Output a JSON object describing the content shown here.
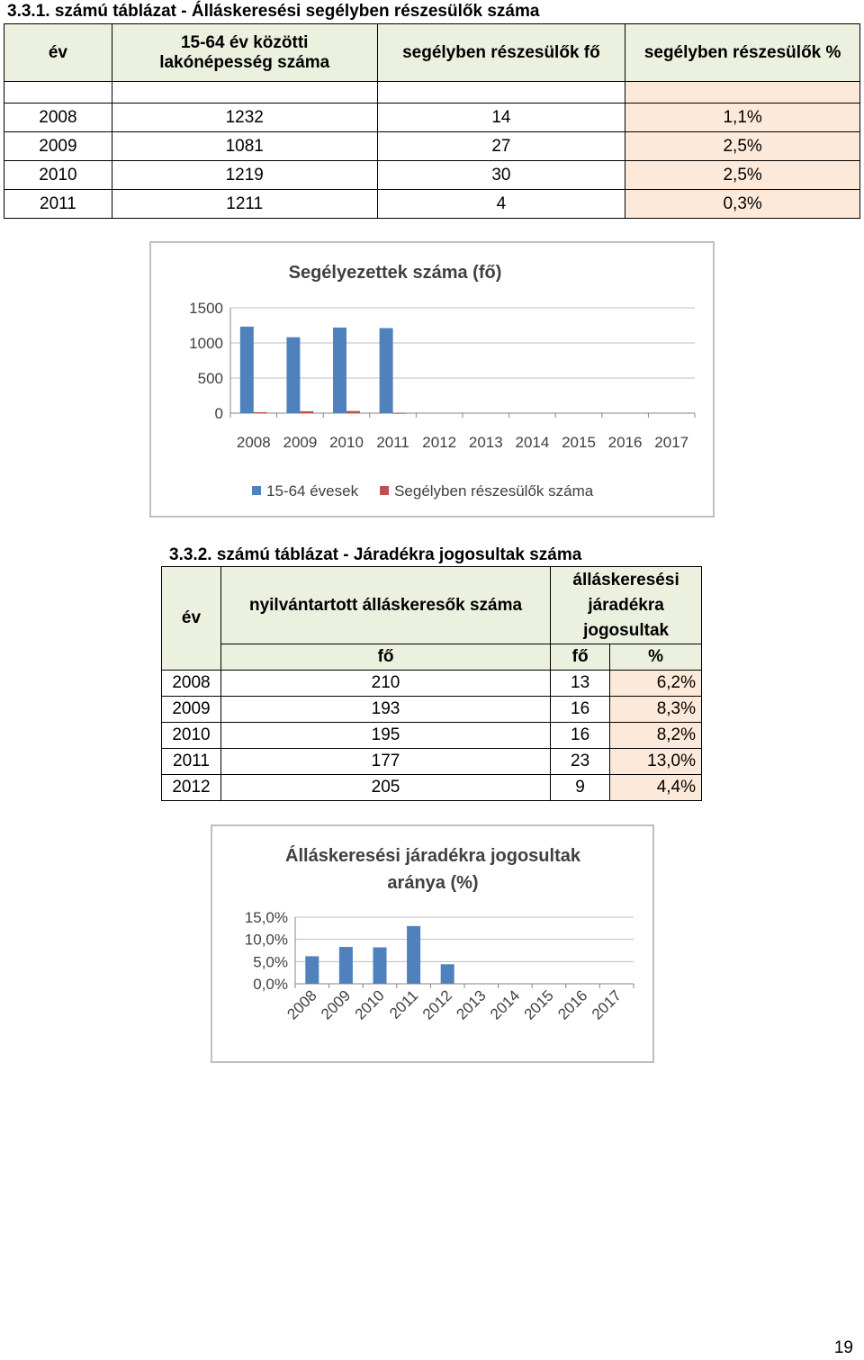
{
  "table1": {
    "caption": "3.3.1. számú táblázat - Álláskeresési segélyben részesülők száma",
    "headers": {
      "year": "év",
      "population_line1": "15-64 év közötti",
      "population_line2": "lakónépesség száma",
      "recipients": "segélyben részesülők fő",
      "percent": "segélyben részesülők %"
    },
    "rows": [
      {
        "year": "2008",
        "population": "1232",
        "recipients": "14",
        "percent": "1,1%"
      },
      {
        "year": "2009",
        "population": "1081",
        "recipients": "27",
        "percent": "2,5%"
      },
      {
        "year": "2010",
        "population": "1219",
        "recipients": "30",
        "percent": "2,5%"
      },
      {
        "year": "2011",
        "population": "1211",
        "recipients": "4",
        "percent": "0,3%"
      }
    ]
  },
  "chart1": {
    "title": "Segélyezettek száma (fő)"
  },
  "table2": {
    "caption": "3.3.2. számú táblázat - Járadékra jogosultak száma",
    "headers": {
      "year": "év",
      "registered": "nyilvántartott álláskeresők száma",
      "entitled_line1": "álláskeresési",
      "entitled_line2": "járadékra",
      "entitled_line3": "jogosultak",
      "unit_fo_1": "fő",
      "unit_fo_2": "fő",
      "unit_pct": "%"
    },
    "rows": [
      {
        "year": "2008",
        "registered": "210",
        "entitled": "13",
        "percent": "6,2%"
      },
      {
        "year": "2009",
        "registered": "193",
        "entitled": "16",
        "percent": "8,3%"
      },
      {
        "year": "2010",
        "registered": "195",
        "entitled": "16",
        "percent": "8,2%"
      },
      {
        "year": "2011",
        "registered": "177",
        "entitled": "23",
        "percent": "13,0%"
      },
      {
        "year": "2012",
        "registered": "205",
        "entitled": "9",
        "percent": "4,4%"
      }
    ]
  },
  "chart2": {
    "title_line1": "Álláskeresési járadékra jogosultak",
    "title_line2": "aránya (%)"
  },
  "page_number": "19",
  "chart_data": [
    {
      "type": "bar",
      "title": "Segélyezettek száma (fő)",
      "categories": [
        "2008",
        "2009",
        "2010",
        "2011",
        "2012",
        "2013",
        "2014",
        "2015",
        "2016",
        "2017"
      ],
      "series": [
        {
          "name": "15-64 évesek",
          "color": "#4f81bd",
          "values": [
            1232,
            1081,
            1219,
            1211,
            null,
            null,
            null,
            null,
            null,
            null
          ]
        },
        {
          "name": "Segélyben részesülők száma",
          "color": "#c0504d",
          "values": [
            14,
            27,
            30,
            4,
            null,
            null,
            null,
            null,
            null,
            null
          ]
        }
      ],
      "yticks": [
        "0",
        "500",
        "1000",
        "1500"
      ],
      "ylim": [
        0,
        1500
      ],
      "legend": "bottom",
      "grid": true
    },
    {
      "type": "bar",
      "title": "Álláskeresési járadékra jogosultak aránya (%)",
      "categories": [
        "2008",
        "2009",
        "2010",
        "2011",
        "2012",
        "2013",
        "2014",
        "2015",
        "2016",
        "2017"
      ],
      "series": [
        {
          "color": "#4f81bd",
          "values": [
            6.2,
            8.3,
            8.2,
            13.0,
            4.4,
            null,
            null,
            null,
            null,
            null
          ]
        }
      ],
      "yticks": [
        "0,0%",
        "5,0%",
        "10,0%",
        "15,0%"
      ],
      "ylim": [
        0,
        15
      ],
      "legend": "none",
      "grid": true
    }
  ]
}
